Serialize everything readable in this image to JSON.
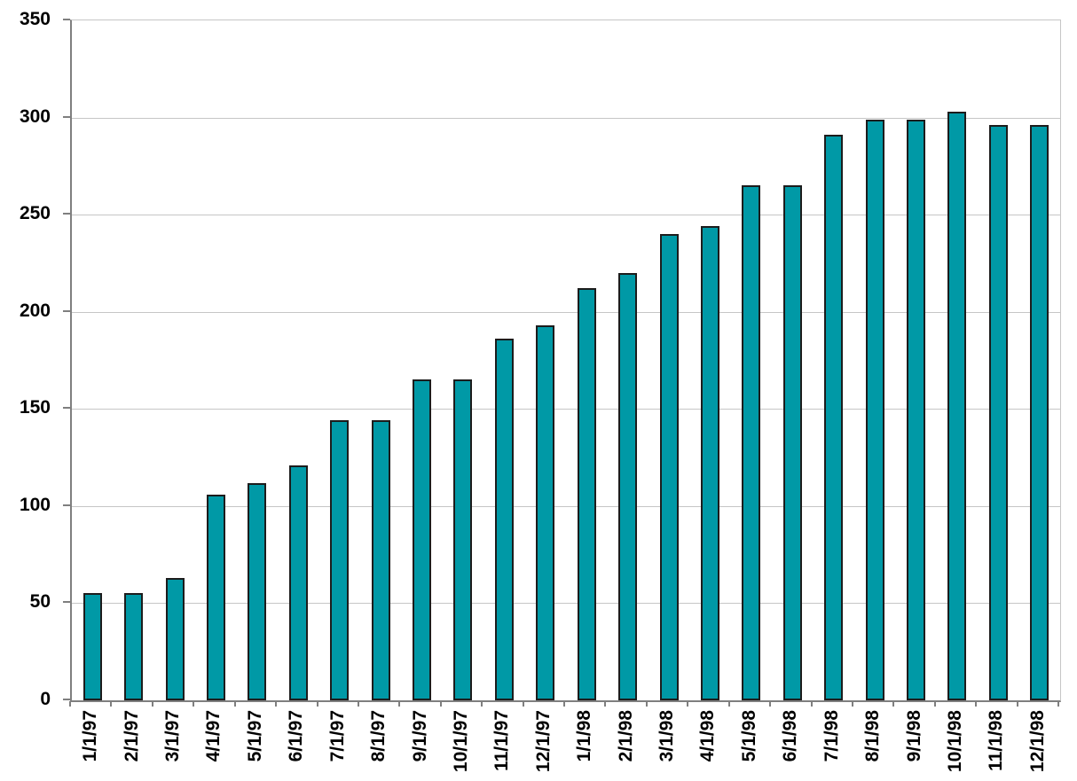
{
  "chart_data": {
    "type": "bar",
    "title": "",
    "xlabel": "",
    "ylabel": "",
    "categories": [
      "1/1/97",
      "2/1/97",
      "3/1/97",
      "4/1/97",
      "5/1/97",
      "6/1/97",
      "7/1/97",
      "8/1/97",
      "9/1/97",
      "10/1/97",
      "11/1/97",
      "12/1/97",
      "1/1/98",
      "2/1/98",
      "3/1/98",
      "4/1/98",
      "5/1/98",
      "6/1/98",
      "7/1/98",
      "8/1/98",
      "9/1/98",
      "10/1/98",
      "11/1/98",
      "12/1/98"
    ],
    "values": [
      55,
      55,
      63,
      106,
      112,
      121,
      144,
      144,
      165,
      165,
      186,
      193,
      212,
      220,
      240,
      244,
      265,
      265,
      291,
      299,
      299,
      303,
      296,
      296
    ],
    "ylim": [
      0,
      350
    ],
    "ytick_interval": 50,
    "ytick_labels": [
      "0",
      "50",
      "100",
      "150",
      "200",
      "250",
      "300",
      "350"
    ],
    "grid": true,
    "legend": "none",
    "colors": {
      "bar_fill": "#0099a6",
      "bar_border": "#1c1c1c",
      "gridline": "#c6c6c6",
      "axis": "#7f7f7f",
      "text": "#000000",
      "background": "#ffffff"
    }
  }
}
